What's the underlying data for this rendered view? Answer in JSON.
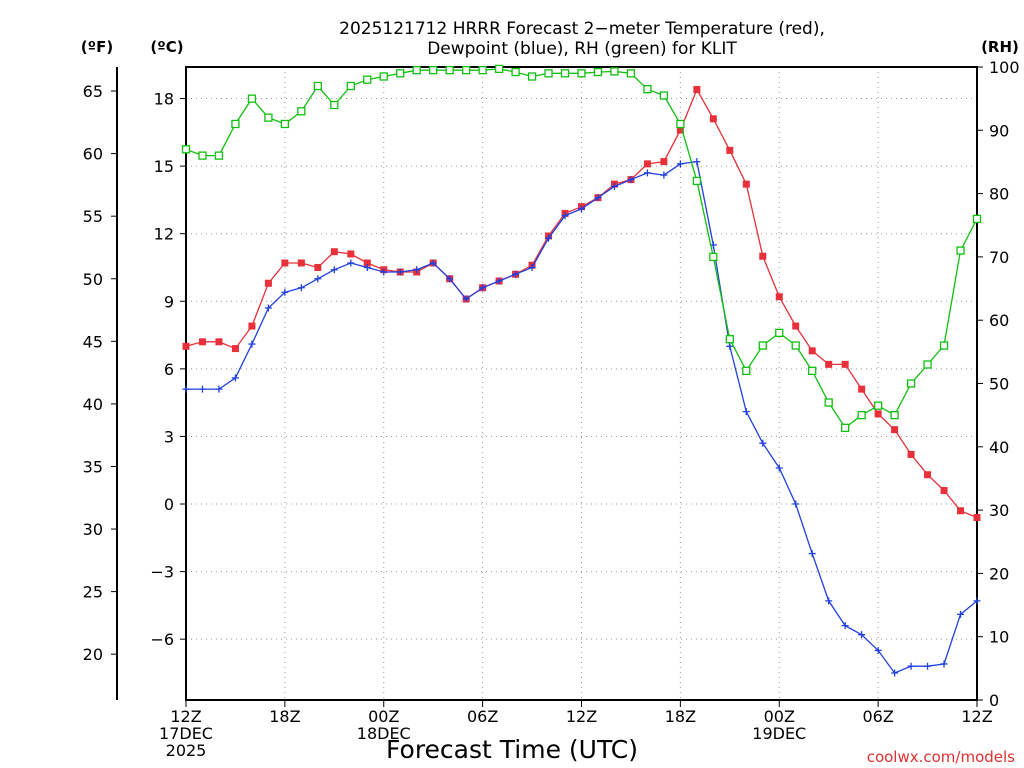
{
  "chart_data": {
    "type": "line",
    "title": [
      "2025121712 HRRR Forecast 2−meter Temperature (red),",
      "Dewpoint (blue), RH (green) for KLIT"
    ],
    "xlabel": "Forecast Time (UTC)",
    "credit": "coolwx.com/models",
    "units": {
      "fahrenheit": "(ºF)",
      "celsius": "(ºC)",
      "rh": "(RH)"
    },
    "x_hours": [
      0,
      1,
      2,
      3,
      4,
      5,
      6,
      7,
      8,
      9,
      10,
      11,
      12,
      13,
      14,
      15,
      16,
      17,
      18,
      19,
      20,
      21,
      22,
      23,
      24,
      25,
      26,
      27,
      28,
      29,
      30,
      31,
      32,
      33,
      34,
      35,
      36,
      37,
      38,
      39,
      40,
      41,
      42,
      43,
      44,
      45,
      46,
      47,
      48
    ],
    "xlim": [
      0,
      48
    ],
    "x_ticks": [
      {
        "hour": 0,
        "lines": [
          "12Z",
          "17DEC",
          "2025"
        ]
      },
      {
        "hour": 6,
        "lines": [
          "18Z"
        ]
      },
      {
        "hour": 12,
        "lines": [
          "00Z",
          "18DEC"
        ]
      },
      {
        "hour": 18,
        "lines": [
          "06Z"
        ]
      },
      {
        "hour": 24,
        "lines": [
          "12Z"
        ]
      },
      {
        "hour": 30,
        "lines": [
          "18Z"
        ]
      },
      {
        "hour": 36,
        "lines": [
          "00Z",
          "19DEC"
        ]
      },
      {
        "hour": 42,
        "lines": [
          "06Z"
        ]
      },
      {
        "hour": 48,
        "lines": [
          "12Z"
        ]
      }
    ],
    "celsius_axis": {
      "ylim": [
        -8.7,
        19.4
      ],
      "ticks": [
        18,
        15,
        12,
        9,
        6,
        3,
        0,
        -3,
        -6
      ],
      "tick_labels": [
        "18",
        "15",
        "12",
        "9",
        "6",
        "3",
        "0",
        "−3",
        "−6"
      ]
    },
    "fahrenheit_axis": {
      "ticks": [
        65,
        60,
        55,
        50,
        45,
        40,
        35,
        30,
        25,
        20
      ],
      "tick_labels": [
        "65",
        "60",
        "55",
        "50",
        "45",
        "40",
        "35",
        "30",
        "25",
        "20"
      ]
    },
    "rh_axis": {
      "ylim": [
        0,
        100
      ],
      "ticks": [
        100,
        90,
        80,
        70,
        60,
        50,
        40,
        30,
        20,
        10,
        0
      ],
      "tick_labels": [
        "100",
        "90",
        "80",
        "70",
        "60",
        "50",
        "40",
        "30",
        "20",
        "10",
        "0"
      ]
    },
    "series": [
      {
        "name": "Temperature",
        "color": "#e8303a",
        "marker": "filled-square",
        "axis": "celsius",
        "values": [
          7.0,
          7.2,
          7.2,
          6.9,
          7.9,
          9.8,
          10.7,
          10.7,
          10.5,
          11.2,
          11.1,
          10.7,
          10.4,
          10.3,
          10.3,
          10.7,
          10.0,
          9.1,
          9.6,
          9.9,
          10.2,
          10.6,
          11.9,
          12.9,
          13.2,
          13.6,
          14.2,
          14.4,
          15.1,
          15.2,
          16.6,
          18.4,
          17.1,
          15.7,
          14.2,
          11.0,
          9.2,
          7.9,
          6.8,
          6.2,
          6.2,
          5.1,
          4.0,
          3.3,
          2.2,
          1.3,
          0.6,
          -0.3,
          -0.6
        ]
      },
      {
        "name": "Dewpoint",
        "color": "#2040e0",
        "marker": "plus",
        "axis": "celsius",
        "values": [
          5.1,
          5.1,
          5.1,
          5.6,
          7.1,
          8.7,
          9.4,
          9.6,
          10.0,
          10.4,
          10.7,
          10.5,
          10.3,
          10.3,
          10.4,
          10.7,
          10.0,
          9.1,
          9.6,
          9.9,
          10.2,
          10.5,
          11.8,
          12.8,
          13.1,
          13.6,
          14.1,
          14.4,
          14.7,
          14.6,
          15.1,
          15.2,
          11.5,
          7.0,
          4.1,
          2.7,
          1.6,
          0.0,
          -2.2,
          -4.3,
          -5.4,
          -5.8,
          -6.5,
          -7.5,
          -7.2,
          -7.2,
          -7.1,
          -4.9,
          -4.3
        ]
      },
      {
        "name": "RH",
        "color": "#10c010",
        "marker": "open-square",
        "axis": "rh",
        "values": [
          87,
          86,
          86,
          91,
          95,
          92,
          91,
          93,
          97,
          94,
          97,
          98,
          98.5,
          99,
          99.5,
          99.5,
          99.5,
          99.5,
          99.5,
          99.7,
          99.2,
          98.5,
          99,
          99,
          99,
          99.2,
          99.3,
          99,
          96.5,
          95.5,
          91,
          82,
          70,
          57,
          52,
          56,
          58,
          56,
          52,
          47,
          43,
          45,
          46.5,
          45,
          50,
          53,
          56,
          71,
          76
        ]
      }
    ]
  }
}
